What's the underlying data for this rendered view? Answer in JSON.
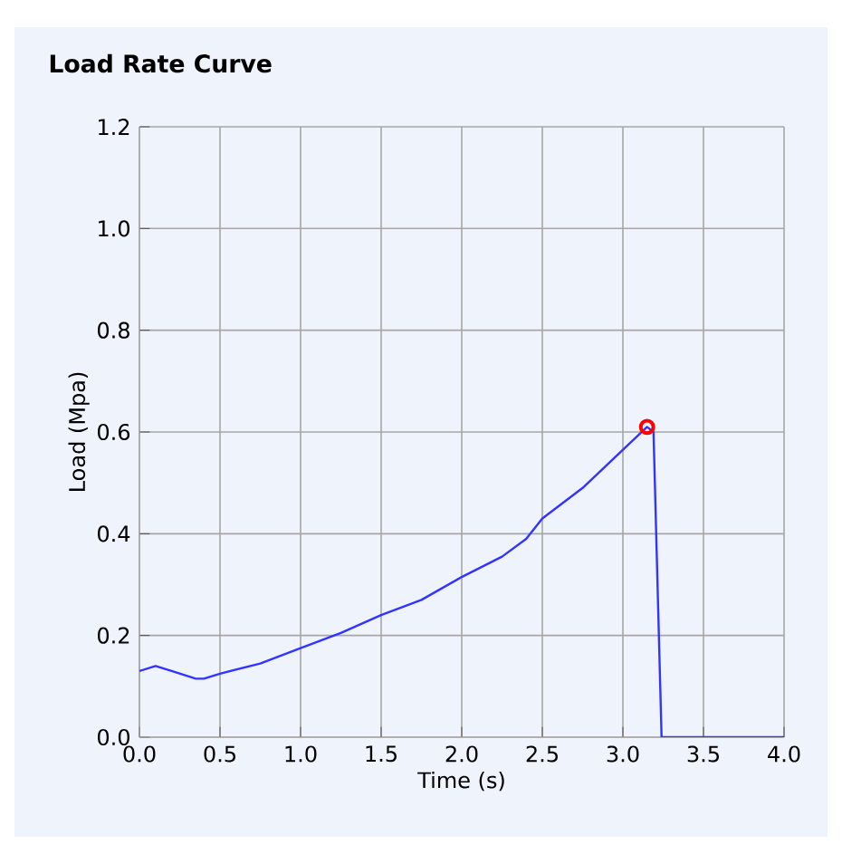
{
  "chart_data": {
    "type": "line",
    "title": "Load Rate Curve",
    "xlabel": "Time (s)",
    "ylabel": "Load (Mpa)",
    "xlim": [
      0,
      4
    ],
    "ylim": [
      0,
      1.2
    ],
    "xticks": [
      {
        "value": 0,
        "label": "0.0"
      },
      0.5,
      {
        "value": 1,
        "label": "1.0"
      },
      1.5,
      {
        "value": 2,
        "label": "2.0"
      },
      2.5,
      {
        "value": 3,
        "label": "3.0"
      },
      3.5,
      {
        "value": 4,
        "label": "4.0"
      }
    ],
    "yticks": [
      {
        "value": 0,
        "label": "0.0"
      },
      0.2,
      0.4,
      0.6,
      0.8,
      {
        "value": 1,
        "label": "1.0"
      },
      1.2
    ],
    "grid": true,
    "series": [
      {
        "color": "#3333ff",
        "x": [
          0,
          0.1,
          0.2,
          0.35,
          0.4,
          0.5,
          0.75,
          1.0,
          1.25,
          1.5,
          1.75,
          2.0,
          2.25,
          2.4,
          2.5,
          2.75,
          3.0,
          3.15,
          3.19,
          3.24,
          4.0
        ],
        "values": [
          0.13,
          0.14,
          0.13,
          0.115,
          0.115,
          0.125,
          0.145,
          0.175,
          0.205,
          0.24,
          0.27,
          0.315,
          0.355,
          0.39,
          0.43,
          0.49,
          0.565,
          0.61,
          0.6,
          0,
          0
        ],
        "marker": "none"
      },
      {
        "type": "scatter",
        "color": "#ff0000",
        "x": [
          3.15
        ],
        "values": [
          0.61
        ],
        "marker": "circle"
      }
    ]
  }
}
